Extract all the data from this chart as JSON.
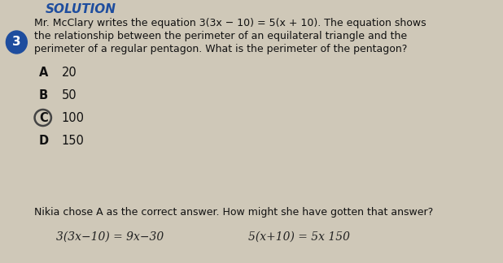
{
  "bg_color": "#cfc8b8",
  "question_number": "3",
  "question_number_bg": "#1e4d9e",
  "question_number_color": "#ffffff",
  "question_text_line1": "Mr. McClary writes the equation 3(3x − 10) = 5(x + 10). The equation shows",
  "question_text_line2": "the relationship between the perimeter of an equilateral triangle and the",
  "question_text_line3": "perimeter of a regular pentagon. What is the perimeter of the pentagon?",
  "choices": [
    {
      "letter": "A",
      "text": "20",
      "circled": false
    },
    {
      "letter": "B",
      "text": "50",
      "circled": false
    },
    {
      "letter": "C",
      "text": "100",
      "circled": true
    },
    {
      "letter": "D",
      "text": "150",
      "circled": false
    }
  ],
  "footer_text": "Nikia chose A as the correct answer. How might she have gotten that answer?",
  "handwritten_left": "3(3x−10) = 9x−30",
  "handwritten_right": "5(x+10) = 5x 150",
  "solution_label": "SOLUTION",
  "title_color": "#1e4d9e",
  "text_color": "#111111",
  "choice_color": "#111111",
  "circle_color": "#444444",
  "font_size_question": 9.0,
  "font_size_choices": 10.5,
  "font_size_footer": 9.0,
  "font_size_handwritten": 10.0
}
